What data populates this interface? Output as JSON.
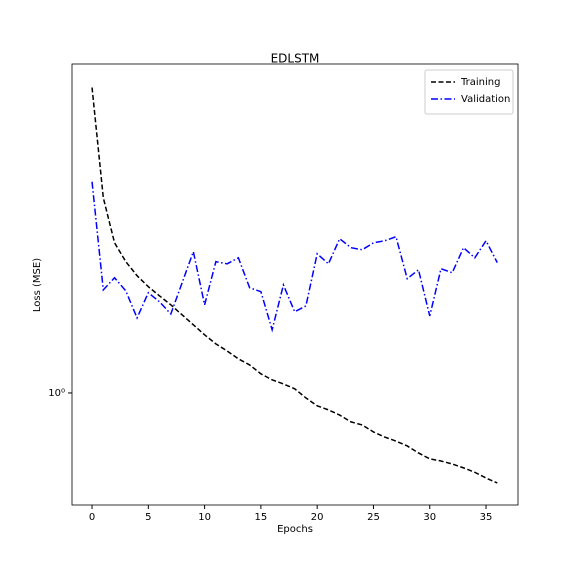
{
  "chart_data": {
    "type": "line",
    "title": "EDLSTM",
    "xlabel": "Epochs",
    "ylabel": "Loss (MSE)",
    "x": [
      0,
      1,
      2,
      3,
      4,
      5,
      6,
      7,
      8,
      9,
      10,
      11,
      12,
      13,
      14,
      15,
      16,
      17,
      18,
      19,
      20,
      21,
      22,
      23,
      24,
      25,
      26,
      27,
      28,
      29,
      30,
      31,
      32,
      33,
      34,
      35,
      36
    ],
    "series": [
      {
        "name": "Training",
        "color": "#000000",
        "dash": "--",
        "values": [
          2.385,
          1.743,
          1.533,
          1.453,
          1.396,
          1.353,
          1.318,
          1.285,
          1.249,
          1.214,
          1.18,
          1.15,
          1.127,
          1.102,
          1.083,
          1.056,
          1.038,
          1.026,
          1.012,
          0.986,
          0.964,
          0.953,
          0.939,
          0.921,
          0.913,
          0.895,
          0.882,
          0.872,
          0.86,
          0.843,
          0.829,
          0.824,
          0.817,
          0.808,
          0.798,
          0.785,
          0.774
        ]
      },
      {
        "name": "Validation",
        "color": "#0000ff",
        "dash": "-.",
        "values": [
          1.824,
          1.341,
          1.388,
          1.337,
          1.238,
          1.33,
          1.296,
          1.252,
          1.368,
          1.495,
          1.285,
          1.453,
          1.444,
          1.469,
          1.349,
          1.334,
          1.197,
          1.36,
          1.26,
          1.281,
          1.486,
          1.444,
          1.551,
          1.512,
          1.503,
          1.533,
          1.542,
          1.56,
          1.384,
          1.42,
          1.245,
          1.424,
          1.408,
          1.512,
          1.469,
          1.542,
          1.449
        ]
      }
    ],
    "xlim": [
      -1.78,
      37.84
    ],
    "xticks": [
      0,
      5,
      10,
      15,
      20,
      25,
      30,
      35
    ],
    "ylim": [
      0.727,
      2.55
    ],
    "yticks": [
      {
        "value": 1,
        "label": "10⁰"
      }
    ],
    "yscale": "log",
    "legend": "upper right"
  }
}
